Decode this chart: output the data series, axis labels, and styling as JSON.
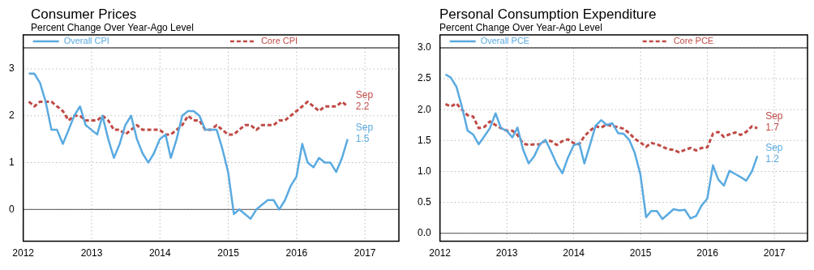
{
  "chart_data": [
    {
      "type": "line",
      "title": "Consumer Prices",
      "subtitle": "Percent Change Over Year-Ago Level",
      "x": [
        "2012-01-31",
        "2012-02-29",
        "2012-03-31",
        "2012-04-30",
        "2012-05-31",
        "2012-06-30",
        "2012-07-31",
        "2012-08-31",
        "2012-09-30",
        "2012-10-31",
        "2012-11-30",
        "2012-12-31",
        "2013-01-31",
        "2013-02-28",
        "2013-03-31",
        "2013-04-30",
        "2013-05-31",
        "2013-06-30",
        "2013-07-31",
        "2013-08-31",
        "2013-09-30",
        "2013-10-31",
        "2013-11-30",
        "2013-12-31",
        "2014-01-31",
        "2014-02-28",
        "2014-03-31",
        "2014-04-30",
        "2014-05-31",
        "2014-06-30",
        "2014-07-31",
        "2014-08-31",
        "2014-09-30",
        "2014-10-31",
        "2014-11-30",
        "2014-12-31",
        "2015-01-31",
        "2015-02-28",
        "2015-03-31",
        "2015-04-30",
        "2015-05-31",
        "2015-06-30",
        "2015-07-31",
        "2015-08-31",
        "2015-09-30",
        "2015-10-31",
        "2015-11-30",
        "2015-12-31",
        "2016-01-31",
        "2016-02-29",
        "2016-03-31",
        "2016-04-30",
        "2016-05-31",
        "2016-06-30",
        "2016-07-31",
        "2016-08-31",
        "2016-09-30"
      ],
      "series": [
        {
          "name": "Overall CPI",
          "color": "#5aaae0",
          "line_style": "solid",
          "values": [
            2.9,
            2.9,
            2.7,
            2.3,
            1.7,
            1.7,
            1.4,
            1.7,
            2.0,
            2.2,
            1.8,
            1.7,
            1.6,
            2.0,
            1.5,
            1.1,
            1.4,
            1.8,
            2.0,
            1.5,
            1.2,
            1.0,
            1.2,
            1.5,
            1.6,
            1.1,
            1.5,
            2.0,
            2.1,
            2.1,
            2.0,
            1.7,
            1.7,
            1.7,
            1.3,
            0.8,
            -0.1,
            0.0,
            -0.1,
            -0.2,
            0.0,
            0.1,
            0.2,
            0.2,
            0.0,
            0.2,
            0.5,
            0.7,
            1.4,
            1.0,
            0.9,
            1.1,
            1.0,
            1.0,
            0.8,
            1.1,
            1.5
          ]
        },
        {
          "name": "Core CPI",
          "color": "#bf4a45",
          "line_style": "dashed",
          "values": [
            2.3,
            2.2,
            2.3,
            2.3,
            2.3,
            2.2,
            2.1,
            1.9,
            2.0,
            2.0,
            1.9,
            1.9,
            1.9,
            2.0,
            1.9,
            1.7,
            1.7,
            1.6,
            1.7,
            1.8,
            1.7,
            1.7,
            1.7,
            1.7,
            1.6,
            1.6,
            1.7,
            1.8,
            2.0,
            1.9,
            1.9,
            1.7,
            1.7,
            1.8,
            1.7,
            1.6,
            1.6,
            1.7,
            1.8,
            1.8,
            1.7,
            1.8,
            1.8,
            1.8,
            1.9,
            1.9,
            2.0,
            2.1,
            2.2,
            2.3,
            2.2,
            2.1,
            2.2,
            2.2,
            2.2,
            2.3,
            2.2
          ]
        }
      ],
      "xlim": [
        "2012",
        "2017-07"
      ],
      "xticks": [
        "2012",
        "2013",
        "2014",
        "2015",
        "2016",
        "2017"
      ],
      "ylim": [
        -0.68,
        3.45
      ],
      "yticks": [
        0,
        1,
        2,
        3
      ],
      "ref_lines": [
        {
          "axis": "y",
          "value": 0,
          "color": "#555555"
        }
      ],
      "annotations": [
        {
          "text": "Sep\n1.5",
          "x": "2016-09-30",
          "y": 1.5
        },
        {
          "text": "Sep\n2.2",
          "x": "2016-09-30",
          "y": 2.2
        }
      ],
      "grid": true,
      "legend": "top",
      "marker": "none"
    },
    {
      "type": "line",
      "title": "Personal Consumption Expenditure",
      "subtitle": "Percent Change Over Year-Ago Level",
      "x": [
        "2012-01-31",
        "2012-02-29",
        "2012-03-31",
        "2012-04-30",
        "2012-05-31",
        "2012-06-30",
        "2012-07-31",
        "2012-08-31",
        "2012-09-30",
        "2012-10-31",
        "2012-11-30",
        "2012-12-31",
        "2013-01-31",
        "2013-02-28",
        "2013-03-31",
        "2013-04-30",
        "2013-05-31",
        "2013-06-30",
        "2013-07-31",
        "2013-08-31",
        "2013-09-30",
        "2013-10-31",
        "2013-11-30",
        "2013-12-31",
        "2014-01-31",
        "2014-02-28",
        "2014-03-31",
        "2014-04-30",
        "2014-05-31",
        "2014-06-30",
        "2014-07-31",
        "2014-08-31",
        "2014-09-30",
        "2014-10-31",
        "2014-11-30",
        "2014-12-31",
        "2015-01-31",
        "2015-02-28",
        "2015-03-31",
        "2015-04-30",
        "2015-05-31",
        "2015-06-30",
        "2015-07-31",
        "2015-08-31",
        "2015-09-30",
        "2015-10-31",
        "2015-11-30",
        "2015-12-31",
        "2016-01-31",
        "2016-02-29",
        "2016-03-31",
        "2016-04-30",
        "2016-05-31",
        "2016-06-30",
        "2016-07-31",
        "2016-08-31",
        "2016-09-30"
      ],
      "series": [
        {
          "name": "Overall PCE",
          "color": "#5aaae0",
          "line_style": "solid",
          "values": [
            2.57,
            2.52,
            2.37,
            2.05,
            1.66,
            1.6,
            1.44,
            1.57,
            1.7,
            1.94,
            1.7,
            1.66,
            1.55,
            1.71,
            1.35,
            1.13,
            1.25,
            1.44,
            1.51,
            1.32,
            1.12,
            0.97,
            1.22,
            1.42,
            1.46,
            1.13,
            1.43,
            1.74,
            1.83,
            1.75,
            1.78,
            1.62,
            1.61,
            1.51,
            1.3,
            0.95,
            0.26,
            0.36,
            0.36,
            0.23,
            0.31,
            0.39,
            0.37,
            0.38,
            0.24,
            0.28,
            0.45,
            0.56,
            1.1,
            0.87,
            0.77,
            1.01,
            0.96,
            0.91,
            0.85,
            1.0,
            1.25
          ]
        },
        {
          "name": "Core PCE",
          "color": "#bf4a45",
          "line_style": "dashed",
          "values": [
            2.09,
            2.05,
            2.1,
            2.0,
            1.91,
            1.89,
            1.7,
            1.72,
            1.81,
            1.75,
            1.7,
            1.66,
            1.66,
            1.59,
            1.45,
            1.43,
            1.44,
            1.44,
            1.5,
            1.49,
            1.43,
            1.49,
            1.52,
            1.46,
            1.44,
            1.57,
            1.66,
            1.73,
            1.71,
            1.76,
            1.73,
            1.72,
            1.69,
            1.62,
            1.53,
            1.47,
            1.4,
            1.46,
            1.44,
            1.4,
            1.36,
            1.35,
            1.31,
            1.35,
            1.38,
            1.34,
            1.38,
            1.39,
            1.61,
            1.64,
            1.56,
            1.6,
            1.63,
            1.59,
            1.64,
            1.73,
            1.7
          ]
        }
      ],
      "xlim": [
        "2012",
        "2017-07"
      ],
      "xticks": [
        "2012",
        "2013",
        "2014",
        "2015",
        "2016",
        "2017"
      ],
      "ylim": [
        -0.13,
        3.0
      ],
      "yticks": [
        {
          "value": 0,
          "label": "0.0"
        },
        {
          "value": 0.5,
          "label": "0.5"
        },
        {
          "value": 1,
          "label": "1.0"
        },
        {
          "value": 1.5,
          "label": "1.5"
        },
        {
          "value": 2,
          "label": "2.0"
        },
        {
          "value": 2.5,
          "label": "2.5"
        },
        {
          "value": 3,
          "label": "3.0"
        }
      ],
      "ref_lines": [
        {
          "axis": "y",
          "value": 0,
          "color": "#555555"
        }
      ],
      "annotations": [
        {
          "text": "Sep\n1.2",
          "x": "2016-09-30",
          "y": 1.2
        },
        {
          "text": "Sep\n1.7",
          "x": "2016-09-30",
          "y": 1.7
        }
      ],
      "grid": true,
      "legend": "top",
      "marker": "none"
    }
  ]
}
